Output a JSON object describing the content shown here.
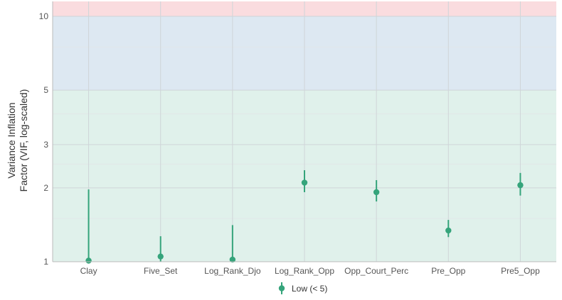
{
  "chart_data": {
    "type": "scatter",
    "subtype": "point-range (VIF check)",
    "ylabel_line1": "Variance Inflation",
    "ylabel_line2": "Factor (VIF, log-scaled)",
    "xlabel": "",
    "y_scale": "log",
    "ylim": [
      1,
      11.5
    ],
    "y_ticks": [
      1,
      2,
      3,
      5,
      10
    ],
    "y_tick_labels": [
      "1",
      "2",
      "3",
      "5",
      "10"
    ],
    "y_minor_gridlines": [
      1.5,
      2.5,
      4,
      7.5
    ],
    "grid": true,
    "legend_position": "bottom",
    "zones": [
      {
        "name": "low",
        "from": 1,
        "to": 5,
        "color": "#e0f1eb"
      },
      {
        "name": "moderate",
        "from": 5,
        "to": 10,
        "color": "#dde8f2"
      },
      {
        "name": "high",
        "from": 10,
        "to": 11.5,
        "color": "#fadcdf"
      }
    ],
    "categories": [
      "Clay",
      "Five_Set",
      "Log_Rank_Djo",
      "Log_Rank_Opp",
      "Opp_Court_Perc",
      "Pre_Opp",
      "Pre5_Opp"
    ],
    "series": [
      {
        "name": "Low (< 5)",
        "color": "#35a47b",
        "values": [
          1.01,
          1.05,
          1.02,
          2.1,
          1.92,
          1.34,
          2.05
        ],
        "ci_low": [
          1.0,
          1.0,
          1.0,
          1.92,
          1.76,
          1.26,
          1.86
        ],
        "ci_high": [
          1.97,
          1.27,
          1.41,
          2.36,
          2.15,
          1.48,
          2.3
        ]
      }
    ]
  }
}
